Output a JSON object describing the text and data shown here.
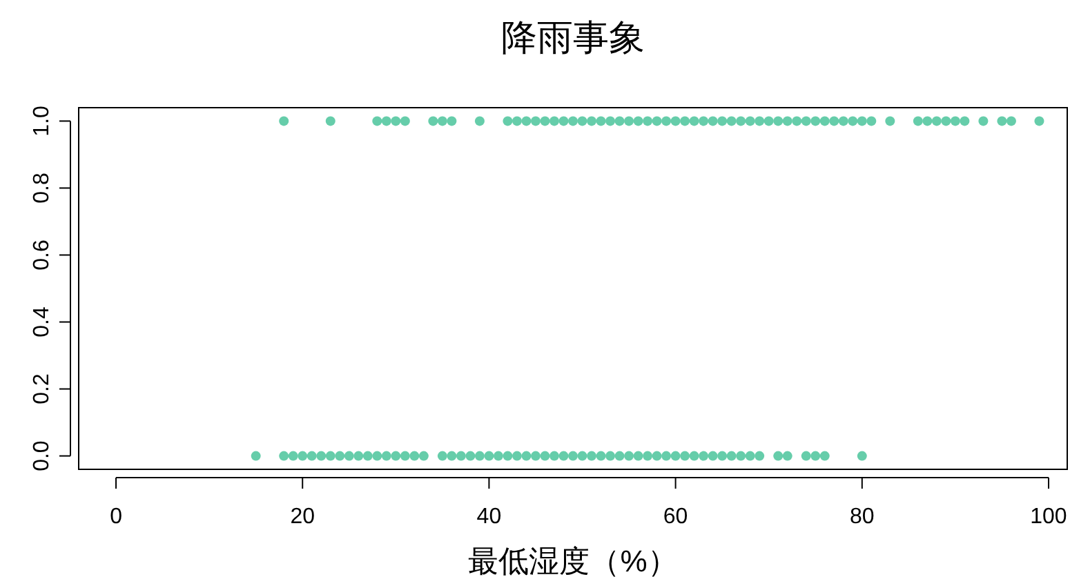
{
  "chart_data": {
    "type": "scatter",
    "title": "降雨事象",
    "xlabel": "最低湿度（%）",
    "xlim": [
      -4,
      102
    ],
    "ylim": [
      -0.04,
      1.04
    ],
    "xticks": [
      0,
      20,
      40,
      60,
      80,
      100
    ],
    "yticks": [
      {
        "value": 0,
        "label": "0.0"
      },
      {
        "value": 0.2,
        "label": "0.2"
      },
      {
        "value": 0.4,
        "label": "0.4"
      },
      {
        "value": 0.6,
        "label": "0.6"
      },
      {
        "value": 0.8,
        "label": "0.8"
      },
      {
        "value": 1,
        "label": "1.0"
      }
    ],
    "marker": "circle",
    "series": [
      {
        "color": "#66cdaa",
        "x": [
          18,
          23,
          28,
          29,
          30,
          31,
          34,
          35,
          36,
          39,
          42,
          43,
          44,
          45,
          46,
          47,
          48,
          49,
          50,
          51,
          52,
          53,
          54,
          55,
          56,
          57,
          58,
          59,
          60,
          61,
          62,
          63,
          64,
          65,
          66,
          67,
          68,
          69,
          70,
          71,
          72,
          73,
          74,
          75,
          76,
          77,
          78,
          79,
          80,
          81,
          83,
          86,
          87,
          88,
          89,
          90,
          91,
          93,
          95,
          96,
          99
        ],
        "values": [
          1,
          1,
          1,
          1,
          1,
          1,
          1,
          1,
          1,
          1,
          1,
          1,
          1,
          1,
          1,
          1,
          1,
          1,
          1,
          1,
          1,
          1,
          1,
          1,
          1,
          1,
          1,
          1,
          1,
          1,
          1,
          1,
          1,
          1,
          1,
          1,
          1,
          1,
          1,
          1,
          1,
          1,
          1,
          1,
          1,
          1,
          1,
          1,
          1,
          1,
          1,
          1,
          1,
          1,
          1,
          1,
          1,
          1,
          1,
          1,
          1
        ]
      },
      {
        "color": "#66cdaa",
        "x": [
          15,
          18,
          19,
          20,
          21,
          22,
          23,
          24,
          25,
          26,
          27,
          28,
          29,
          30,
          31,
          32,
          33,
          35,
          36,
          37,
          38,
          39,
          40,
          41,
          42,
          43,
          44,
          45,
          46,
          47,
          48,
          49,
          50,
          51,
          52,
          53,
          54,
          55,
          56,
          57,
          58,
          59,
          60,
          61,
          62,
          63,
          64,
          65,
          66,
          67,
          68,
          69,
          71,
          72,
          74,
          75,
          76,
          80
        ],
        "values": [
          0,
          0,
          0,
          0,
          0,
          0,
          0,
          0,
          0,
          0,
          0,
          0,
          0,
          0,
          0,
          0,
          0,
          0,
          0,
          0,
          0,
          0,
          0,
          0,
          0,
          0,
          0,
          0,
          0,
          0,
          0,
          0,
          0,
          0,
          0,
          0,
          0,
          0,
          0,
          0,
          0,
          0,
          0,
          0,
          0,
          0,
          0,
          0,
          0,
          0,
          0,
          0,
          0,
          0,
          0,
          0,
          0,
          0
        ]
      }
    ]
  }
}
